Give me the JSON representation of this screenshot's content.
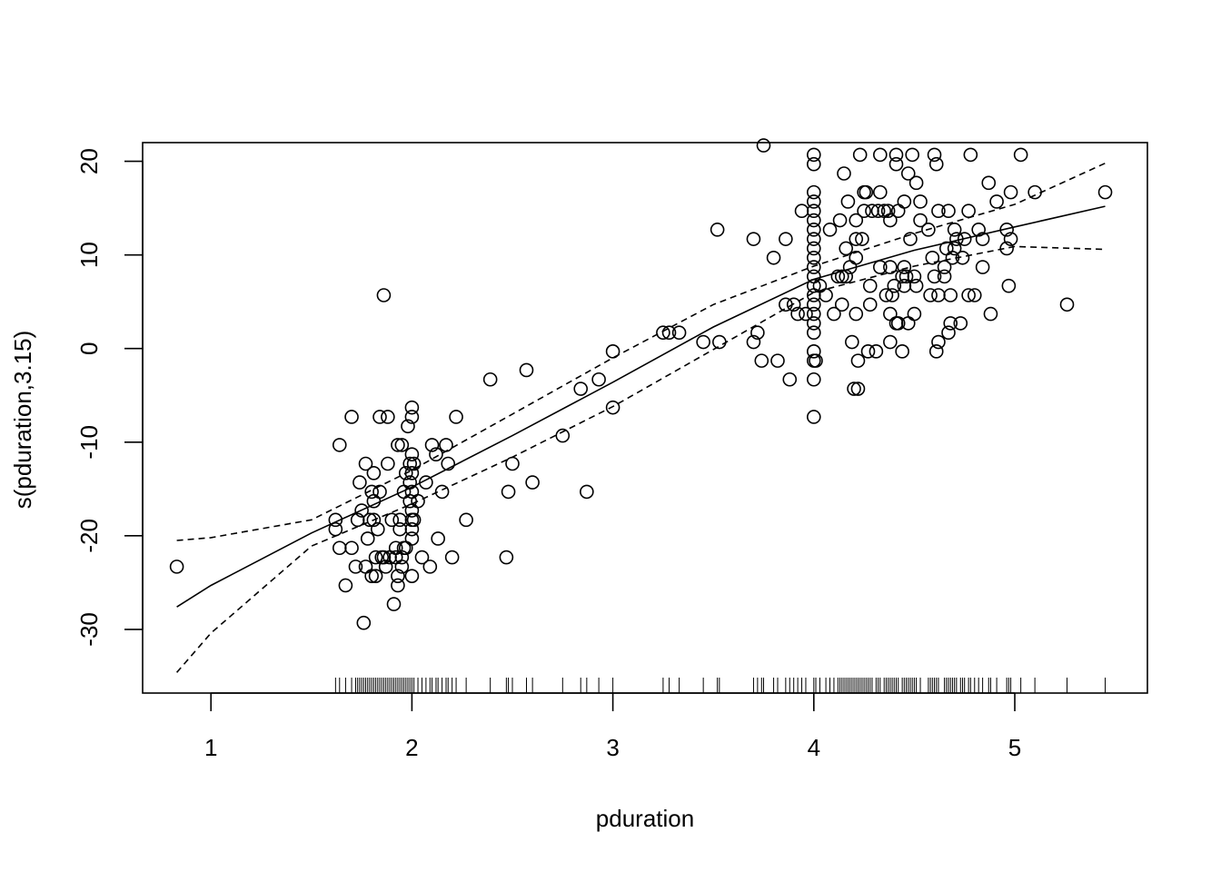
{
  "chart_data": {
    "type": "scatter",
    "title": "",
    "xlabel": "pduration",
    "ylabel": "s(pduration,3.15)",
    "xlim": [
      0.66,
      5.66
    ],
    "ylim": [
      -36.8,
      22.0
    ],
    "x_ticks": [
      1,
      2,
      3,
      4,
      5
    ],
    "y_ticks": [
      -30,
      -20,
      -10,
      0,
      10,
      20
    ],
    "grid": false,
    "legend": "none",
    "smooth_fit": {
      "x": [
        0.83,
        1.0,
        1.5,
        2.0,
        2.5,
        3.0,
        3.5,
        4.0,
        4.5,
        5.0,
        5.45
      ],
      "y": [
        -27.6,
        -25.3,
        -19.7,
        -14.8,
        -9.3,
        -3.6,
        2.3,
        7.4,
        10.5,
        13.0,
        15.2
      ]
    },
    "upper_band": {
      "x": [
        0.83,
        1.0,
        1.5,
        2.0,
        2.5,
        3.0,
        3.5,
        4.0,
        4.5,
        5.0,
        5.45
      ],
      "y": [
        -20.5,
        -20.2,
        -18.3,
        -13.0,
        -7.0,
        -1.0,
        4.7,
        8.8,
        12.3,
        15.4,
        19.8
      ]
    },
    "lower_band": {
      "x": [
        0.83,
        1.0,
        1.5,
        2.0,
        2.5,
        3.0,
        3.5,
        4.0,
        4.5,
        5.0,
        5.45
      ],
      "y": [
        -34.6,
        -30.4,
        -21.1,
        -16.6,
        -11.6,
        -6.2,
        -0.1,
        6.0,
        8.8,
        10.9,
        10.6
      ]
    },
    "points": [
      [
        0.83,
        -23.3
      ],
      [
        1.62,
        -18.3
      ],
      [
        1.62,
        -19.3
      ],
      [
        1.64,
        -21.3
      ],
      [
        1.64,
        -10.3
      ],
      [
        1.67,
        -25.3
      ],
      [
        1.7,
        -7.3
      ],
      [
        1.7,
        -21.3
      ],
      [
        1.72,
        -23.3
      ],
      [
        1.73,
        -18.3
      ],
      [
        1.74,
        -14.3
      ],
      [
        1.75,
        -17.3
      ],
      [
        1.76,
        -29.3
      ],
      [
        1.77,
        -12.3
      ],
      [
        1.77,
        -23.3
      ],
      [
        1.78,
        -20.3
      ],
      [
        1.79,
        -18.3
      ],
      [
        1.8,
        -15.3
      ],
      [
        1.8,
        -24.3
      ],
      [
        1.81,
        -13.3
      ],
      [
        1.81,
        -16.3
      ],
      [
        1.81,
        -18.3
      ],
      [
        1.82,
        -24.3
      ],
      [
        1.82,
        -22.3
      ],
      [
        1.83,
        -19.3
      ],
      [
        1.84,
        -7.3
      ],
      [
        1.84,
        -15.3
      ],
      [
        1.85,
        -22.3
      ],
      [
        1.86,
        -22.3
      ],
      [
        1.86,
        5.7
      ],
      [
        1.87,
        -23.3
      ],
      [
        1.88,
        -7.3
      ],
      [
        1.88,
        -12.3
      ],
      [
        1.89,
        -22.3
      ],
      [
        1.9,
        -18.3
      ],
      [
        1.91,
        -27.3
      ],
      [
        1.92,
        -21.3
      ],
      [
        1.92,
        -22.3
      ],
      [
        1.93,
        -24.3
      ],
      [
        1.93,
        -25.3
      ],
      [
        1.93,
        -10.3
      ],
      [
        1.94,
        -18.3
      ],
      [
        1.94,
        -19.3
      ],
      [
        1.95,
        -10.3
      ],
      [
        1.95,
        -22.3
      ],
      [
        1.95,
        -23.3
      ],
      [
        1.96,
        -21.3
      ],
      [
        1.96,
        -15.3
      ],
      [
        1.97,
        -13.3
      ],
      [
        1.97,
        -21.3
      ],
      [
        1.98,
        -8.3
      ],
      [
        1.99,
        -12.3
      ],
      [
        1.99,
        -14.3
      ],
      [
        1.99,
        -16.3
      ],
      [
        2.0,
        -6.3
      ],
      [
        2.0,
        -7.3
      ],
      [
        2.0,
        -11.3
      ],
      [
        2.0,
        -13.3
      ],
      [
        2.0,
        -15.3
      ],
      [
        2.0,
        -17.3
      ],
      [
        2.0,
        -18.3
      ],
      [
        2.0,
        -19.3
      ],
      [
        2.0,
        -20.3
      ],
      [
        2.0,
        -24.3
      ],
      [
        2.01,
        -12.3
      ],
      [
        2.01,
        -18.3
      ],
      [
        2.03,
        -16.3
      ],
      [
        2.05,
        -22.3
      ],
      [
        2.07,
        -14.3
      ],
      [
        2.09,
        -23.3
      ],
      [
        2.1,
        -10.3
      ],
      [
        2.12,
        -11.3
      ],
      [
        2.13,
        -20.3
      ],
      [
        2.15,
        -15.3
      ],
      [
        2.17,
        -10.3
      ],
      [
        2.18,
        -12.3
      ],
      [
        2.2,
        -22.3
      ],
      [
        2.22,
        -7.3
      ],
      [
        2.27,
        -18.3
      ],
      [
        2.39,
        -3.3
      ],
      [
        2.47,
        -22.3
      ],
      [
        2.48,
        -15.3
      ],
      [
        2.5,
        -12.3
      ],
      [
        2.57,
        -2.3
      ],
      [
        2.6,
        -14.3
      ],
      [
        2.75,
        -9.3
      ],
      [
        2.84,
        -4.3
      ],
      [
        2.87,
        -15.3
      ],
      [
        2.93,
        -3.3
      ],
      [
        3.0,
        -0.3
      ],
      [
        3.0,
        -6.3
      ],
      [
        3.25,
        1.7
      ],
      [
        3.28,
        1.7
      ],
      [
        3.33,
        1.7
      ],
      [
        3.45,
        0.7
      ],
      [
        3.52,
        12.7
      ],
      [
        3.53,
        0.7
      ],
      [
        3.7,
        0.7
      ],
      [
        3.7,
        11.7
      ],
      [
        3.72,
        1.7
      ],
      [
        3.74,
        -1.3
      ],
      [
        3.75,
        21.7
      ],
      [
        3.8,
        9.7
      ],
      [
        3.82,
        -1.3
      ],
      [
        3.86,
        11.7
      ],
      [
        3.86,
        4.7
      ],
      [
        3.88,
        -3.3
      ],
      [
        3.9,
        4.7
      ],
      [
        3.92,
        3.7
      ],
      [
        3.94,
        14.7
      ],
      [
        3.96,
        3.7
      ],
      [
        4.0,
        20.7
      ],
      [
        4.0,
        19.7
      ],
      [
        4.0,
        16.7
      ],
      [
        4.0,
        15.7
      ],
      [
        4.0,
        14.7
      ],
      [
        4.0,
        13.7
      ],
      [
        4.0,
        12.7
      ],
      [
        4.0,
        11.7
      ],
      [
        4.0,
        10.7
      ],
      [
        4.0,
        9.7
      ],
      [
        4.0,
        8.7
      ],
      [
        4.0,
        7.7
      ],
      [
        4.0,
        6.7
      ],
      [
        4.0,
        5.7
      ],
      [
        4.0,
        4.7
      ],
      [
        4.0,
        3.7
      ],
      [
        4.0,
        2.7
      ],
      [
        4.0,
        1.7
      ],
      [
        4.0,
        -0.3
      ],
      [
        4.0,
        -1.3
      ],
      [
        4.0,
        -3.3
      ],
      [
        4.0,
        -7.3
      ],
      [
        4.01,
        -1.3
      ],
      [
        4.03,
        6.7
      ],
      [
        4.06,
        5.7
      ],
      [
        4.08,
        12.7
      ],
      [
        4.1,
        3.7
      ],
      [
        4.12,
        7.7
      ],
      [
        4.13,
        13.7
      ],
      [
        4.14,
        7.7
      ],
      [
        4.14,
        4.7
      ],
      [
        4.15,
        18.7
      ],
      [
        4.16,
        7.7
      ],
      [
        4.16,
        10.7
      ],
      [
        4.17,
        15.7
      ],
      [
        4.18,
        8.7
      ],
      [
        4.19,
        0.7
      ],
      [
        4.2,
        -4.3
      ],
      [
        4.21,
        3.7
      ],
      [
        4.21,
        11.7
      ],
      [
        4.21,
        13.7
      ],
      [
        4.21,
        9.7
      ],
      [
        4.22,
        -1.3
      ],
      [
        4.22,
        -4.3
      ],
      [
        4.23,
        20.7
      ],
      [
        4.24,
        11.7
      ],
      [
        4.25,
        14.7
      ],
      [
        4.25,
        16.7
      ],
      [
        4.26,
        16.7
      ],
      [
        4.27,
        -0.3
      ],
      [
        4.28,
        6.7
      ],
      [
        4.28,
        4.7
      ],
      [
        4.29,
        14.7
      ],
      [
        4.31,
        -0.3
      ],
      [
        4.32,
        14.7
      ],
      [
        4.33,
        8.7
      ],
      [
        4.33,
        20.7
      ],
      [
        4.33,
        16.7
      ],
      [
        4.35,
        14.7
      ],
      [
        4.36,
        5.7
      ],
      [
        4.37,
        14.7
      ],
      [
        4.38,
        3.7
      ],
      [
        4.38,
        0.7
      ],
      [
        4.38,
        8.7
      ],
      [
        4.38,
        13.7
      ],
      [
        4.39,
        5.7
      ],
      [
        4.4,
        6.7
      ],
      [
        4.41,
        19.7
      ],
      [
        4.41,
        20.7
      ],
      [
        4.41,
        2.7
      ],
      [
        4.42,
        2.7
      ],
      [
        4.42,
        14.7
      ],
      [
        4.44,
        -0.3
      ],
      [
        4.44,
        7.7
      ],
      [
        4.45,
        8.7
      ],
      [
        4.45,
        15.7
      ],
      [
        4.45,
        6.7
      ],
      [
        4.46,
        7.7
      ],
      [
        4.47,
        18.7
      ],
      [
        4.47,
        2.7
      ],
      [
        4.48,
        11.7
      ],
      [
        4.49,
        20.7
      ],
      [
        4.5,
        3.7
      ],
      [
        4.5,
        7.7
      ],
      [
        4.51,
        6.7
      ],
      [
        4.51,
        17.7
      ],
      [
        4.53,
        15.7
      ],
      [
        4.53,
        13.7
      ],
      [
        4.57,
        12.7
      ],
      [
        4.58,
        5.7
      ],
      [
        4.59,
        9.7
      ],
      [
        4.6,
        7.7
      ],
      [
        4.6,
        20.7
      ],
      [
        4.61,
        19.7
      ],
      [
        4.61,
        -0.3
      ],
      [
        4.62,
        0.7
      ],
      [
        4.62,
        14.7
      ],
      [
        4.62,
        5.7
      ],
      [
        4.65,
        8.7
      ],
      [
        4.65,
        7.7
      ],
      [
        4.66,
        10.7
      ],
      [
        4.67,
        14.7
      ],
      [
        4.67,
        1.7
      ],
      [
        4.68,
        2.7
      ],
      [
        4.68,
        5.7
      ],
      [
        4.69,
        9.7
      ],
      [
        4.7,
        12.7
      ],
      [
        4.7,
        10.7
      ],
      [
        4.71,
        11.7
      ],
      [
        4.73,
        2.7
      ],
      [
        4.74,
        9.7
      ],
      [
        4.75,
        11.7
      ],
      [
        4.77,
        14.7
      ],
      [
        4.77,
        5.7
      ],
      [
        4.78,
        20.7
      ],
      [
        4.8,
        5.7
      ],
      [
        4.82,
        12.7
      ],
      [
        4.84,
        11.7
      ],
      [
        4.84,
        8.7
      ],
      [
        4.87,
        17.7
      ],
      [
        4.88,
        3.7
      ],
      [
        4.91,
        15.7
      ],
      [
        4.96,
        10.7
      ],
      [
        4.96,
        12.7
      ],
      [
        4.97,
        6.7
      ],
      [
        4.98,
        16.7
      ],
      [
        4.98,
        11.7
      ],
      [
        5.03,
        20.7
      ],
      [
        5.1,
        16.7
      ],
      [
        5.26,
        4.7
      ],
      [
        5.45,
        16.7
      ]
    ],
    "rug": [
      1.62,
      1.64,
      1.67,
      1.7,
      1.72,
      1.73,
      1.74,
      1.75,
      1.76,
      1.77,
      1.78,
      1.79,
      1.8,
      1.81,
      1.82,
      1.83,
      1.84,
      1.85,
      1.86,
      1.87,
      1.88,
      1.89,
      1.9,
      1.91,
      1.92,
      1.93,
      1.94,
      1.95,
      1.96,
      1.97,
      1.98,
      1.99,
      2.0,
      2.01,
      2.03,
      2.05,
      2.07,
      2.09,
      2.1,
      2.12,
      2.13,
      2.15,
      2.17,
      2.18,
      2.2,
      2.22,
      2.27,
      2.39,
      2.47,
      2.48,
      2.5,
      2.57,
      2.6,
      2.75,
      2.84,
      2.87,
      2.93,
      3.0,
      3.25,
      3.28,
      3.33,
      3.45,
      3.52,
      3.53,
      3.7,
      3.72,
      3.74,
      3.75,
      3.8,
      3.82,
      3.86,
      3.88,
      3.9,
      3.92,
      3.94,
      3.96,
      4.0,
      4.01,
      4.03,
      4.06,
      4.08,
      4.1,
      4.12,
      4.13,
      4.14,
      4.15,
      4.16,
      4.17,
      4.18,
      4.19,
      4.2,
      4.21,
      4.22,
      4.23,
      4.24,
      4.25,
      4.26,
      4.27,
      4.28,
      4.29,
      4.31,
      4.32,
      4.33,
      4.35,
      4.36,
      4.37,
      4.38,
      4.39,
      4.4,
      4.41,
      4.42,
      4.44,
      4.45,
      4.46,
      4.47,
      4.48,
      4.49,
      4.5,
      4.51,
      4.53,
      4.57,
      4.58,
      4.59,
      4.6,
      4.61,
      4.62,
      4.65,
      4.66,
      4.67,
      4.68,
      4.69,
      4.7,
      4.71,
      4.73,
      4.74,
      4.75,
      4.77,
      4.78,
      4.8,
      4.82,
      4.84,
      4.87,
      4.88,
      4.91,
      4.96,
      4.97,
      4.98,
      5.03,
      5.1,
      5.26,
      5.45
    ]
  }
}
